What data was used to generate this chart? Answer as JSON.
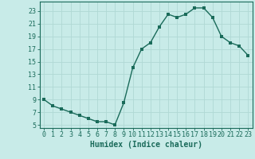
{
  "x": [
    0,
    1,
    2,
    3,
    4,
    5,
    6,
    7,
    8,
    9,
    10,
    11,
    12,
    13,
    14,
    15,
    16,
    17,
    18,
    19,
    20,
    21,
    22,
    23
  ],
  "y": [
    9,
    8,
    7.5,
    7,
    6.5,
    6,
    5.5,
    5.5,
    5,
    8.5,
    14,
    17,
    18,
    20.5,
    22.5,
    22,
    22.5,
    23.5,
    23.5,
    22,
    19,
    18,
    17.5,
    16
  ],
  "line_color": "#1a6b5a",
  "bg_color": "#c8ebe8",
  "grid_color": "#b0d8d4",
  "xlabel": "Humidex (Indice chaleur)",
  "ylabel_ticks": [
    5,
    7,
    9,
    11,
    13,
    15,
    17,
    19,
    21,
    23
  ],
  "xlim": [
    -0.5,
    23.5
  ],
  "ylim": [
    4.5,
    24.5
  ],
  "xtick_labels": [
    "0",
    "1",
    "2",
    "3",
    "4",
    "5",
    "6",
    "7",
    "8",
    "9",
    "10",
    "11",
    "12",
    "13",
    "14",
    "15",
    "16",
    "17",
    "18",
    "19",
    "20",
    "21",
    "22",
    "23"
  ],
  "marker_size": 2.5,
  "line_width": 1.0,
  "xlabel_fontsize": 7.0,
  "tick_fontsize": 6.0
}
